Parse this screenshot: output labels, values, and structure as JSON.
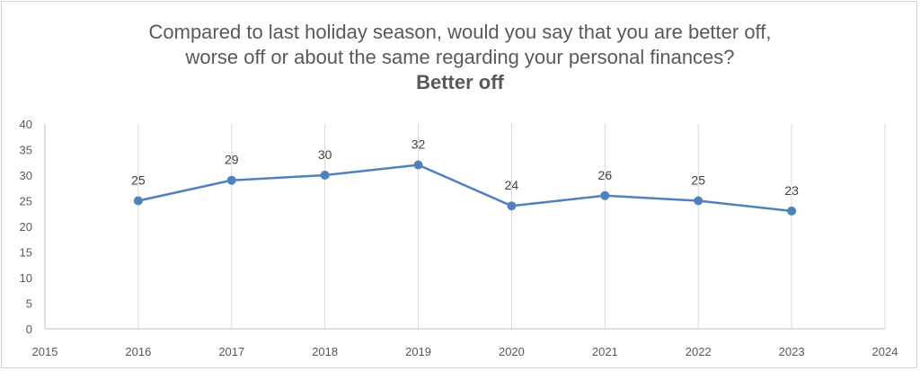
{
  "chart_data": {
    "type": "line",
    "title_lines": [
      "Compared to last holiday season, would you say that you are better off,",
      "worse off or about the same regarding your personal finances?"
    ],
    "subtitle": "Better off",
    "x": [
      2016,
      2017,
      2018,
      2019,
      2020,
      2021,
      2022,
      2023
    ],
    "series": [
      {
        "values": [
          25,
          29,
          30,
          32,
          24,
          26,
          25,
          23
        ]
      }
    ],
    "xlim": [
      2015,
      2024
    ],
    "ylim": [
      0,
      40
    ],
    "x_ticks": [
      2015,
      2016,
      2017,
      2018,
      2019,
      2020,
      2021,
      2022,
      2023,
      2024
    ],
    "y_ticks": [
      0,
      5,
      10,
      15,
      20,
      25,
      30,
      35,
      40
    ],
    "grid": "vertical",
    "legend": "none",
    "line_color": "#4f81bd",
    "grid_color": "#d9d9d9",
    "axis_color": "#bfbfbf"
  }
}
